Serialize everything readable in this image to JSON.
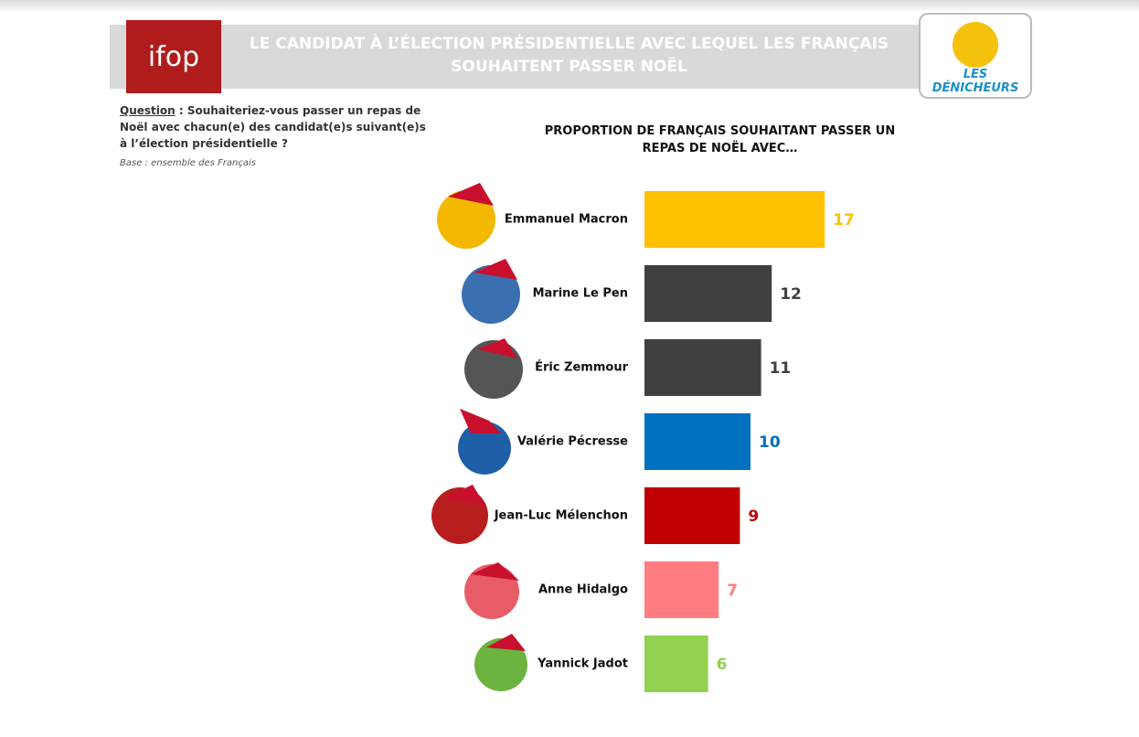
{
  "header": {
    "logo_left": "ifop",
    "title": "LE CANDIDAT À L’ÉLECTION PRÉSIDENTIELLE AVEC LEQUEL LES FRANÇAIS SOUHAITENT PASSER NOËL",
    "logo_right": "LES DÉNICHEURS"
  },
  "question": {
    "label": "Question",
    "text": " : Souhaiteriez-vous passer un repas de Noël avec chacun(e) des candidat(e)s suivant(e)s à l’élection présidentielle ?",
    "base": "Base : ensemble des Français"
  },
  "chart_data": {
    "type": "bar",
    "orientation": "horizontal",
    "title": "PROPORTION DE FRANÇAIS SOUHAITANT PASSER UN REPAS DE NOËL AVEC…",
    "categories": [
      "Emmanuel Macron",
      "Marine Le Pen",
      "Éric Zemmour",
      "Valérie Pécresse",
      "Jean-Luc Mélenchon",
      "Anne Hidalgo",
      "Yannick Jadot"
    ],
    "values": [
      17,
      12,
      11,
      10,
      9,
      7,
      6
    ],
    "colors": [
      "#ffc000",
      "#404040",
      "#404040",
      "#0070c0",
      "#c00000",
      "#ff7c80",
      "#92d050"
    ]
  }
}
